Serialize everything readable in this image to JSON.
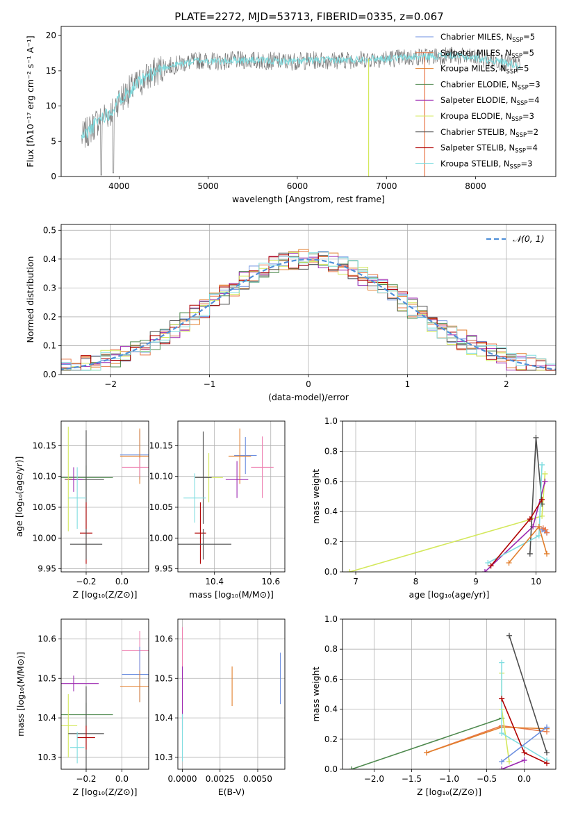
{
  "figure_title": "PLATE=2272, MJD=53713, FIBERID=0335, z=0.067",
  "colors": {
    "Chabrier MILES": "#6c8fe0",
    "Salpeter MILES": "#e8784a",
    "Kroupa MILES": "#e27f2d",
    "Chabrier ELODIE": "#4f8a4f",
    "Salpeter ELODIE": "#9c27b0",
    "Kroupa ELODIE": "#d4e85c",
    "Chabrier STELIB": "#4d4d4d",
    "Salpeter STELIB": "#b00000",
    "Kroupa STELIB": "#7fdde0",
    "pink": "#ee7fb0",
    "normal_curve": "#4f8fd8"
  },
  "chart_data": [
    {
      "id": "spectrum",
      "type": "line",
      "xlabel": "wavelength [Angstrom, rest frame]",
      "ylabel": "Flux [fλ10⁻¹⁷ erg cm⁻² s⁻¹ A⁻¹]",
      "xlim": [
        3350,
        8900
      ],
      "ylim": [
        0,
        21.3
      ],
      "xticks": [
        4000,
        5000,
        6000,
        7000,
        8000
      ],
      "yticks": [
        0,
        5,
        10,
        15,
        20
      ],
      "legend_position": "top-right",
      "series": [
        {
          "name": "Chabrier MILES, N_SSP=5"
        },
        {
          "name": "Salpeter MILES, N_SSP=5"
        },
        {
          "name": "Kroupa MILES, N_SSP=5"
        },
        {
          "name": "Chabrier ELODIE, N_SSP=3"
        },
        {
          "name": "Salpeter ELODIE, N_SSP=4"
        },
        {
          "name": "Kroupa ELODIE, N_SSP=3"
        },
        {
          "name": "Chabrier STELIB, N_SSP=2"
        },
        {
          "name": "Salpeter STELIB, N_SSP=4"
        },
        {
          "name": "Kroupa STELIB, N_SSP=3"
        }
      ],
      "envelope": {
        "x": [
          3580,
          3700,
          3800,
          3900,
          4000,
          4100,
          4300,
          4500,
          4700,
          4900,
          5100,
          5300,
          5500,
          5700,
          5900,
          6200,
          6500,
          6800,
          7100,
          7400,
          7700,
          8000,
          8300,
          8500
        ],
        "y": [
          5.5,
          7,
          8.5,
          9,
          11,
          12,
          14,
          15.5,
          16,
          16.5,
          16.3,
          16.5,
          16.5,
          16.4,
          16.3,
          16.5,
          16.5,
          16.7,
          16.8,
          17,
          17.2,
          16.8,
          16.3,
          15.7
        ]
      }
    },
    {
      "id": "residuals",
      "type": "histogram",
      "xlabel": "(data-model)/error",
      "ylabel": "Normed distribution",
      "xlim": [
        -2.5,
        2.5
      ],
      "ylim": [
        0,
        0.52
      ],
      "xticks": [
        -2,
        -1,
        0,
        1,
        2
      ],
      "yticks": [
        0.0,
        0.1,
        0.2,
        0.3,
        0.4,
        0.5
      ],
      "legend": [
        "𝒩(0, 1)"
      ],
      "legend_position": "top-right",
      "grid": true
    },
    {
      "id": "age_vs_Z",
      "type": "errorbar",
      "xlabel": "Z [log₁₀(Z/Z⊙)]",
      "ylabel": "age  [log₁₀(age/yr)]",
      "xlim": [
        -0.34,
        0.15
      ],
      "ylim": [
        9.945,
        10.19
      ],
      "xticks": [
        -0.2,
        0.0
      ],
      "yticks": [
        9.95,
        10.0,
        10.05,
        10.1,
        10.15
      ],
      "grid": true,
      "points": [
        {
          "x": 0.1,
          "y": 10.135,
          "xerr": 0.11,
          "yerr": 0.04,
          "c": "Chabrier MILES"
        },
        {
          "x": 0.1,
          "y": 10.133,
          "xerr": 0.11,
          "yerr": 0.045,
          "c": "Kroupa MILES"
        },
        {
          "x": 0.1,
          "y": 10.115,
          "xerr": 0.1,
          "yerr": 0.015,
          "c": "pink"
        },
        {
          "x": -0.2,
          "y": 10.098,
          "xerr": 0.15,
          "yerr": 0.02,
          "c": "Chabrier ELODIE"
        },
        {
          "x": -0.2,
          "y": 10.095,
          "xerr": 0.1,
          "yerr": 0.08,
          "c": "Chabrier STELIB"
        },
        {
          "x": -0.27,
          "y": 10.095,
          "xerr": 0.05,
          "yerr": 0.02,
          "c": "Salpeter ELODIE"
        },
        {
          "x": -0.3,
          "y": 10.096,
          "xerr": 0.02,
          "yerr": 0.085,
          "c": "Kroupa ELODIE"
        },
        {
          "x": -0.25,
          "y": 10.065,
          "xerr": 0.05,
          "yerr": 0.05,
          "c": "Kroupa STELIB"
        },
        {
          "x": -0.2,
          "y": 10.008,
          "xerr": 0.035,
          "yerr": 0.05,
          "c": "Salpeter STELIB"
        },
        {
          "x": -0.2,
          "y": 9.99,
          "xerr": 0.09,
          "yerr": 0.025,
          "c": "Chabrier STELIB"
        }
      ]
    },
    {
      "id": "age_vs_mass",
      "type": "errorbar",
      "xlabel": "mass [log₁₀(M/M⊙)]",
      "ylabel": "",
      "xlim": [
        10.27,
        10.65
      ],
      "ylim": [
        9.945,
        10.19
      ],
      "xticks": [
        10.4,
        10.6
      ],
      "yticks": [
        9.95,
        10.0,
        10.05,
        10.1,
        10.15
      ],
      "grid": true,
      "points": [
        {
          "x": 10.51,
          "y": 10.134,
          "xerr": 0.04,
          "yerr": 0.03,
          "c": "Chabrier MILES"
        },
        {
          "x": 10.49,
          "y": 10.133,
          "xerr": 0.04,
          "yerr": 0.045,
          "c": "Kroupa MILES"
        },
        {
          "x": 10.57,
          "y": 10.115,
          "xerr": 0.04,
          "yerr": 0.05,
          "c": "pink"
        },
        {
          "x": 10.48,
          "y": 10.095,
          "xerr": 0.04,
          "yerr": 0.03,
          "c": "Salpeter ELODIE"
        },
        {
          "x": 10.38,
          "y": 10.098,
          "xerr": 0.05,
          "yerr": 0.04,
          "c": "Kroupa ELODIE"
        },
        {
          "x": 10.36,
          "y": 10.098,
          "xerr": 0.03,
          "yerr": 0.075,
          "c": "Chabrier STELIB"
        },
        {
          "x": 10.33,
          "y": 10.065,
          "xerr": 0.04,
          "yerr": 0.04,
          "c": "Kroupa STELIB"
        },
        {
          "x": 10.35,
          "y": 10.008,
          "xerr": 0.02,
          "yerr": 0.05,
          "c": "Salpeter STELIB"
        },
        {
          "x": 10.36,
          "y": 9.99,
          "xerr": 0.1,
          "yerr": 0.025,
          "c": "Chabrier STELIB"
        }
      ]
    },
    {
      "id": "weight_vs_age",
      "type": "line",
      "xlabel": "age  [log₁₀(age/yr)]",
      "ylabel": "mass weight",
      "xlim": [
        6.78,
        10.33
      ],
      "ylim": [
        0,
        1.0
      ],
      "xticks": [
        7,
        8,
        9,
        10
      ],
      "yticks": [
        0.0,
        0.2,
        0.4,
        0.6,
        0.8,
        1.0
      ],
      "grid": true,
      "series": [
        {
          "c": "Kroupa ELODIE",
          "x": [
            6.9,
            10.1,
            10.15
          ],
          "y": [
            0.0,
            0.37,
            0.65
          ]
        },
        {
          "c": "Salpeter ELODIE",
          "x": [
            9.15,
            9.95,
            10.15
          ],
          "y": [
            0.0,
            0.3,
            0.6
          ]
        },
        {
          "c": "Chabrier STELIB",
          "x": [
            9.9,
            10.0,
            10.1
          ],
          "y": [
            0.12,
            0.89,
            0.45
          ]
        },
        {
          "c": "Kroupa STELIB",
          "x": [
            9.2,
            10.05,
            10.1
          ],
          "y": [
            0.06,
            0.24,
            0.71
          ]
        },
        {
          "c": "Salpeter STELIB",
          "x": [
            9.25,
            9.9,
            10.1
          ],
          "y": [
            0.04,
            0.35,
            0.48
          ]
        },
        {
          "c": "Kroupa MILES",
          "x": [
            9.55,
            10.05,
            10.18
          ],
          "y": [
            0.06,
            0.3,
            0.12
          ]
        },
        {
          "c": "Chabrier MILES",
          "x": [
            10.1,
            10.15,
            10.18
          ],
          "y": [
            0.28,
            0.27,
            0.26
          ]
        },
        {
          "c": "Salpeter MILES",
          "x": [
            10.12,
            10.16,
            10.18
          ],
          "y": [
            0.29,
            0.28,
            0.26
          ]
        }
      ]
    },
    {
      "id": "mass_vs_Z",
      "type": "errorbar",
      "xlabel": "Z [log₁₀(Z/Z⊙)]",
      "ylabel": "mass [log₁₀(M/M⊙)]",
      "xlim": [
        -0.34,
        0.15
      ],
      "ylim": [
        10.27,
        10.65
      ],
      "xticks": [
        -0.2,
        0.0
      ],
      "yticks": [
        10.3,
        10.4,
        10.5,
        10.6
      ],
      "grid": true,
      "points": [
        {
          "x": 0.1,
          "y": 10.57,
          "xerr": 0.1,
          "yerr": 0.05,
          "c": "pink"
        },
        {
          "x": 0.1,
          "y": 10.51,
          "xerr": 0.1,
          "yerr": 0.07,
          "c": "Chabrier MILES"
        },
        {
          "x": 0.1,
          "y": 10.48,
          "xerr": 0.11,
          "yerr": 0.04,
          "c": "Kroupa MILES"
        },
        {
          "x": -0.27,
          "y": 10.487,
          "xerr": 0.14,
          "yerr": 0.02,
          "c": "Salpeter ELODIE"
        },
        {
          "x": -0.2,
          "y": 10.408,
          "xerr": 0.15,
          "yerr": 0.03,
          "c": "Chabrier ELODIE"
        },
        {
          "x": -0.3,
          "y": 10.38,
          "xerr": 0.05,
          "yerr": 0.08,
          "c": "Kroupa ELODIE"
        },
        {
          "x": -0.2,
          "y": 10.36,
          "xerr": 0.1,
          "yerr": 0.12,
          "c": "Chabrier STELIB"
        },
        {
          "x": -0.2,
          "y": 10.35,
          "xerr": 0.05,
          "yerr": 0.03,
          "c": "Salpeter STELIB"
        },
        {
          "x": -0.25,
          "y": 10.325,
          "xerr": 0.04,
          "yerr": 0.04,
          "c": "Kroupa STELIB"
        }
      ]
    },
    {
      "id": "mass_vs_EBV",
      "type": "errorbar",
      "xlabel": "E(B-V)",
      "ylabel": "",
      "xlim": [
        -0.0003,
        0.0068
      ],
      "ylim": [
        10.27,
        10.65
      ],
      "xticks": [
        0.0,
        0.0025,
        0.005
      ],
      "xticklabels": [
        "0.0000",
        "0.0025",
        "0.0050"
      ],
      "yticks": [
        10.3,
        10.4,
        10.5,
        10.6
      ],
      "grid": true,
      "points": [
        {
          "x": 0.0,
          "y": 10.55,
          "xerr": 0,
          "yerr": 0.08,
          "c": "pink"
        },
        {
          "x": 0.0,
          "y": 10.45,
          "xerr": 0,
          "yerr": 0.08,
          "c": "Salpeter ELODIE"
        },
        {
          "x": 0.0,
          "y": 10.35,
          "xerr": 0,
          "yerr": 0.06,
          "c": "Kroupa STELIB"
        },
        {
          "x": 0.0033,
          "y": 10.48,
          "xerr": 0,
          "yerr": 0.05,
          "c": "Kroupa MILES"
        },
        {
          "x": 0.0065,
          "y": 10.5,
          "xerr": 0,
          "yerr": 0.065,
          "c": "Chabrier MILES"
        }
      ]
    },
    {
      "id": "weight_vs_Z",
      "type": "line",
      "xlabel": "Z [log₁₀(Z/Z⊙)]",
      "ylabel": "mass weight",
      "xlim": [
        -2.42,
        0.42
      ],
      "ylim": [
        0,
        1.0
      ],
      "xticks": [
        -2.0,
        -1.5,
        -1.0,
        -0.5,
        0.0
      ],
      "yticks": [
        0.0,
        0.2,
        0.4,
        0.6,
        0.8,
        1.0
      ],
      "grid": true,
      "series": [
        {
          "c": "Chabrier ELODIE",
          "x": [
            -2.3,
            -0.3
          ],
          "y": [
            0.0,
            0.34
          ]
        },
        {
          "c": "Salpeter MILES",
          "x": [
            -1.3,
            -0.3,
            0.3
          ],
          "y": [
            0.11,
            0.29,
            0.25
          ]
        },
        {
          "c": "Kroupa MILES",
          "x": [
            -1.3,
            -0.3,
            0.3
          ],
          "y": [
            0.11,
            0.28,
            0.27
          ]
        },
        {
          "c": "Chabrier STELIB",
          "x": [
            -0.2,
            0.3
          ],
          "y": [
            0.89,
            0.11
          ]
        },
        {
          "c": "Kroupa ELODIE",
          "x": [
            -0.3,
            -0.3,
            -0.2
          ],
          "y": [
            0.64,
            0.4,
            0.05
          ]
        },
        {
          "c": "Kroupa STELIB",
          "x": [
            -0.3,
            -0.3,
            0.3
          ],
          "y": [
            0.71,
            0.24,
            0.06
          ]
        },
        {
          "c": "Salpeter STELIB",
          "x": [
            -0.3,
            0.0,
            0.3
          ],
          "y": [
            0.47,
            0.11,
            0.04
          ]
        },
        {
          "c": "Salpeter ELODIE",
          "x": [
            -0.3,
            0.0
          ],
          "y": [
            0.0,
            0.06
          ]
        },
        {
          "c": "Chabrier MILES",
          "x": [
            -0.3,
            0.3
          ],
          "y": [
            0.05,
            0.28
          ]
        }
      ]
    }
  ]
}
